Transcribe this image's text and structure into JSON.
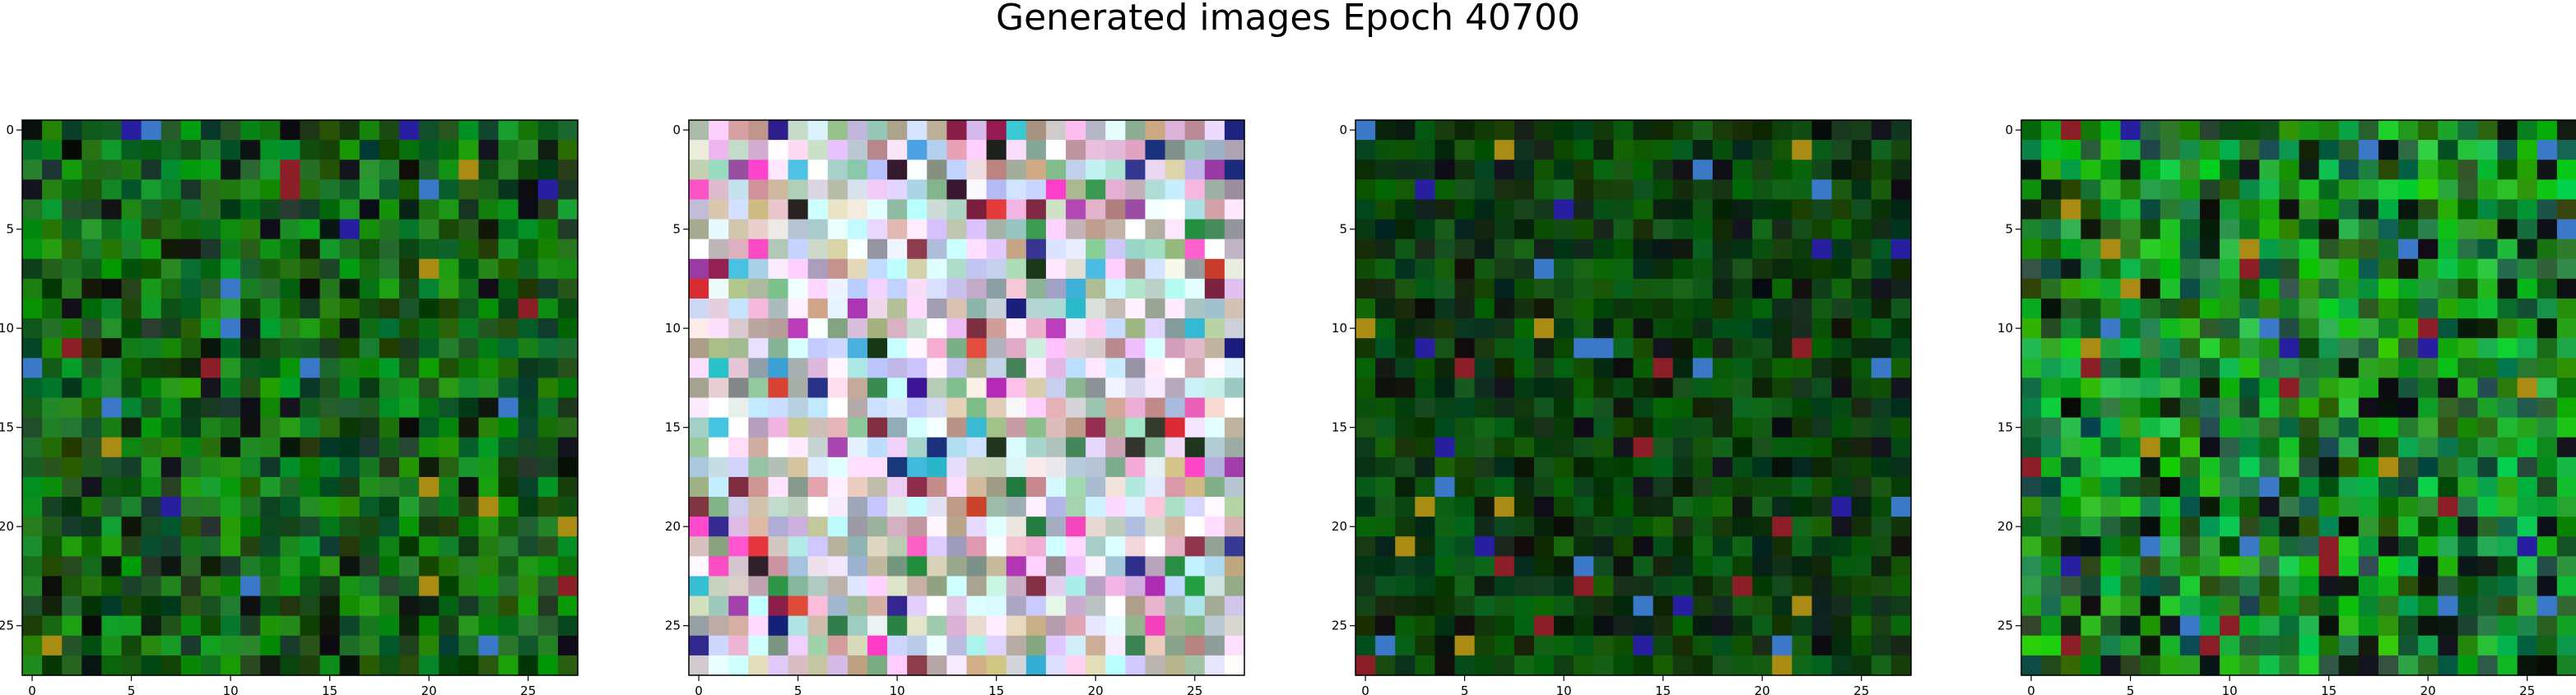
{
  "figure": {
    "title": "Generated images Epoch 40700"
  },
  "chart_data": [
    {
      "type": "heatmap",
      "panel": 1,
      "palette": "green",
      "seed": 11,
      "grid": [
        28,
        28
      ],
      "xlim": [
        -0.5,
        27.5
      ],
      "ylim": [
        27.5,
        -0.5
      ],
      "xticks": [
        0,
        5,
        10,
        15,
        20,
        25
      ],
      "yticks": [
        0,
        5,
        10,
        15,
        20,
        25
      ]
    },
    {
      "type": "heatmap",
      "panel": 2,
      "palette": "pastel",
      "seed": 23,
      "grid": [
        28,
        28
      ],
      "xlim": [
        -0.5,
        27.5
      ],
      "ylim": [
        27.5,
        -0.5
      ],
      "xticks": [
        0,
        5,
        10,
        15,
        20,
        25
      ],
      "yticks": [
        0,
        5,
        10,
        15,
        20,
        25
      ]
    },
    {
      "type": "heatmap",
      "panel": 3,
      "palette": "green-dark",
      "seed": 37,
      "grid": [
        28,
        28
      ],
      "xlim": [
        -0.5,
        27.5
      ],
      "ylim": [
        27.5,
        -0.5
      ],
      "xticks": [
        0,
        5,
        10,
        15,
        20,
        25
      ],
      "yticks": [
        0,
        5,
        10,
        15,
        20,
        25
      ]
    },
    {
      "type": "heatmap",
      "panel": 4,
      "palette": "green-bright",
      "seed": 53,
      "grid": [
        28,
        28
      ],
      "xlim": [
        -0.5,
        27.5
      ],
      "ylim": [
        27.5,
        -0.5
      ],
      "xticks": [
        0,
        5,
        10,
        15,
        20,
        25
      ],
      "yticks": [
        0,
        5,
        10,
        15,
        20,
        25
      ]
    }
  ]
}
